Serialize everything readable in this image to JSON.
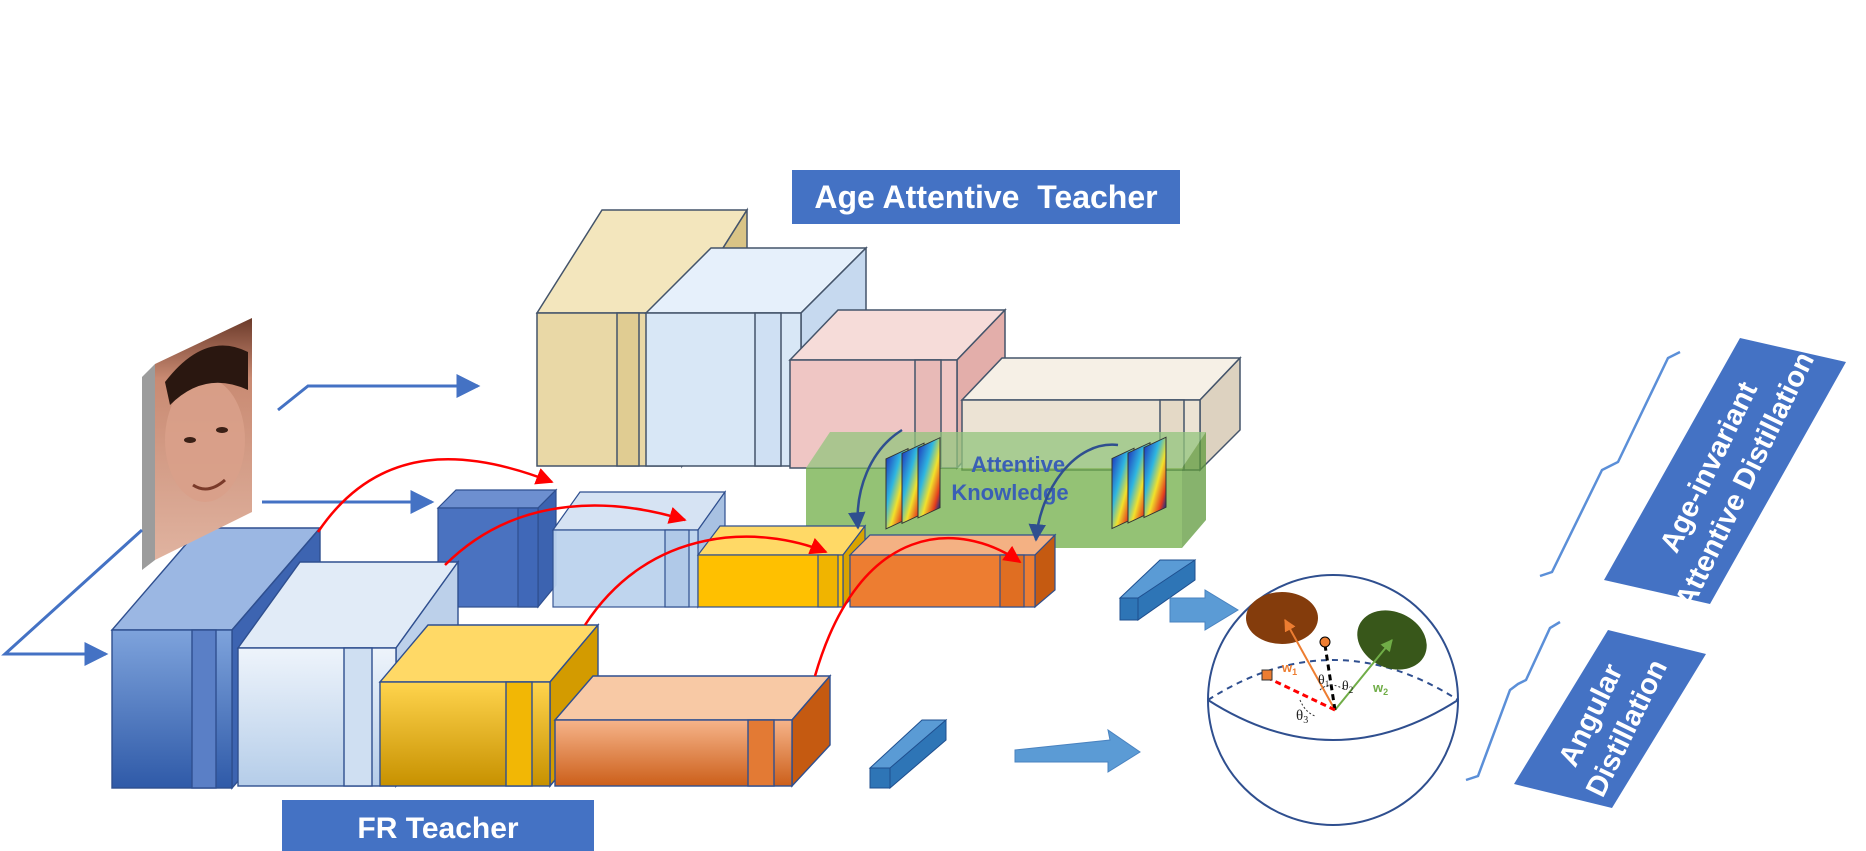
{
  "labels": {
    "age_teacher": "Age Attentive  Teacher",
    "fr_teacher": "FR Teacher",
    "attentive_knowledge_line1": "Attentive",
    "attentive_knowledge_line2": "Knowledge",
    "age_invariant_line1": "Age-invariant",
    "age_invariant_line2": "Attentive Distillation",
    "angular_line1": "Angular",
    "angular_line2": "Distillation",
    "w1": "w",
    "w1_sub": "1",
    "w2": "w",
    "w2_sub": "2",
    "theta1": "θ",
    "theta1_sub": "1",
    "theta2": "θ",
    "theta2_sub": "2",
    "theta3": "θ",
    "theta3_sub": "3"
  },
  "colors": {
    "label_box": "#4472c4",
    "label_text": "#ffffff",
    "block_blue": "#4a72c0",
    "block_lightblue": "#bcd3ee",
    "block_yellow": "#ffc000",
    "block_orange": "#ed7d31",
    "block_tan": "#e9d8a6",
    "block_pink": "#efc6c4",
    "block_beige": "#ece3d4",
    "attention_green": "#70ad47",
    "arrow_red": "#ff0000",
    "arrow_blue": "#4472c4",
    "class_brown": "#843c0c",
    "class_green": "#38571a"
  },
  "icons": {
    "input_face": "face-photo-icon"
  }
}
